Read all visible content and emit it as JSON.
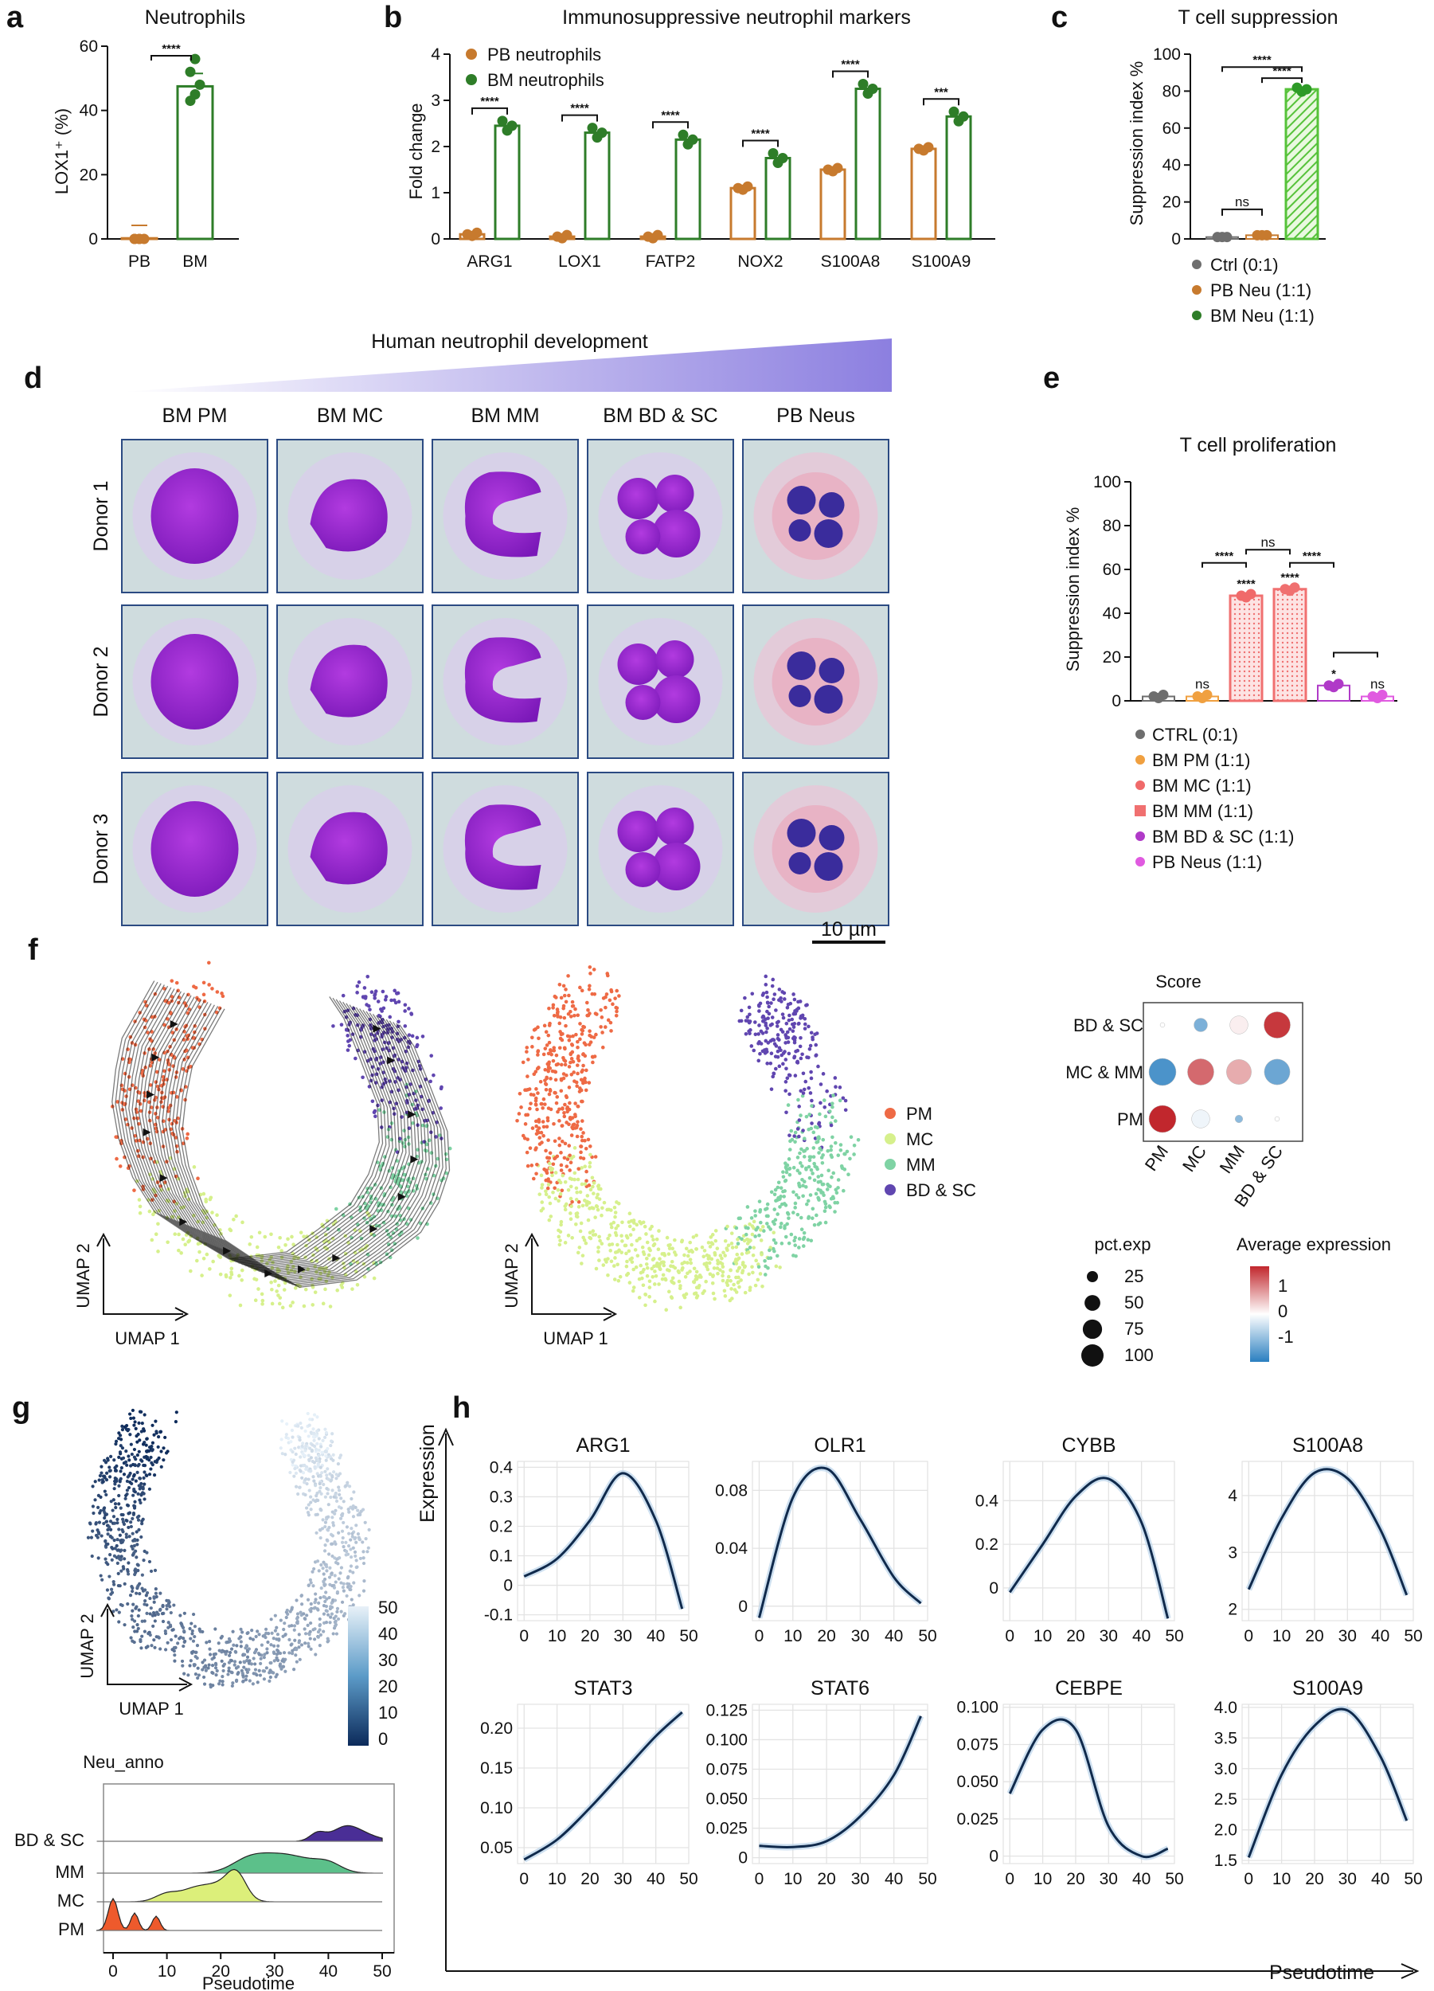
{
  "colors": {
    "pb": "#c77a2e",
    "bm": "#2e7d28",
    "bm_fill": "#56c23a",
    "ctrl": "#6e6e6e",
    "pm": "#f0a040",
    "mc": "#f06a6a",
    "mm": "#f07070",
    "bdsc": "#b03ac8",
    "pbneus": "#e05ae0",
    "umap_pm": "#ee6a45",
    "umap_mc": "#d6f08c",
    "umap_mm": "#7fd3a4",
    "umap_bdsc": "#6046b0",
    "curve": "#102a4c"
  },
  "panels": {
    "a": {
      "label": "a",
      "title": "Neutrophils",
      "ylabel": "LOX1⁺ (%)",
      "yticks": [
        "0",
        "20",
        "40",
        "60"
      ],
      "categories": [
        "PB",
        "BM"
      ],
      "sig": "****"
    },
    "b": {
      "label": "b",
      "title": "Immunosuppressive neutrophil markers",
      "ylabel": "Fold change",
      "yticks": [
        "0",
        "1",
        "2",
        "3",
        "4"
      ],
      "legend": [
        "PB neutrophils",
        "BM neutrophils"
      ],
      "categories": [
        "ARG1",
        "LOX1",
        "FATP2",
        "NOX2",
        "S100A8",
        "S100A9"
      ],
      "sigs": [
        "****",
        "****",
        "****",
        "****",
        "****",
        "***"
      ]
    },
    "c": {
      "label": "c",
      "title": "T cell suppression",
      "ylabel": "Suppression index %",
      "yticks": [
        "0",
        "20",
        "40",
        "60",
        "80",
        "100"
      ],
      "legend": [
        "Ctrl (0:1)",
        "PB Neu (1:1)",
        "BM Neu (1:1)"
      ],
      "sig_ns": "ns",
      "sig1": "****",
      "sig2": "****"
    },
    "d": {
      "label": "d",
      "title": "Human neutrophil development",
      "columns": [
        "BM PM",
        "BM MC",
        "BM MM",
        "BM BD & SC",
        "PB Neus"
      ],
      "rows": [
        "Donor 1",
        "Donor 2",
        "Donor 3"
      ],
      "scalebar": "10 µm"
    },
    "e": {
      "label": "e",
      "title": "T cell proliferation",
      "ylabel": "Suppression index %",
      "yticks": [
        "0",
        "20",
        "40",
        "60",
        "80",
        "100"
      ],
      "legend": [
        "CTRL (0:1)",
        "BM PM (1:1)",
        "BM MC (1:1)",
        "BM MM (1:1)",
        "BM BD & SC (1:1)",
        "PB Neus (1:1)"
      ],
      "bar_sigs": [
        "",
        "ns",
        "****",
        "****",
        "*",
        "ns"
      ],
      "bracket_sigs": [
        "****",
        "ns",
        "****"
      ]
    },
    "f": {
      "label": "f",
      "axis1": "UMAP 1",
      "axis2": "UMAP 2",
      "legend": [
        "PM",
        "MC",
        "MM",
        "BD & SC"
      ],
      "dot_title": "Score",
      "dot_rows": [
        "BD & SC",
        "MC & MM",
        "PM"
      ],
      "dot_cols": [
        "PM",
        "MC",
        "MM",
        "BD & SC"
      ],
      "pct_title": "pct.exp",
      "pct_values": [
        "25",
        "50",
        "75",
        "100"
      ],
      "avg_title": "Average expression",
      "avg_ticks": [
        "1",
        "0",
        "-1"
      ]
    },
    "g": {
      "label": "g",
      "axis1": "UMAP 1",
      "axis2": "UMAP 2",
      "colorbar_ticks": [
        "50",
        "40",
        "30",
        "20",
        "10",
        "0"
      ],
      "ridge_title": "Neu_anno",
      "ridge_rows": [
        "BD & SC",
        "MM",
        "MC",
        "PM"
      ],
      "xticks": [
        "0",
        "10",
        "20",
        "30",
        "40",
        "50"
      ],
      "xlabel": "Pseudotime"
    },
    "h": {
      "label": "h",
      "ylabel": "Expression",
      "xlabel": "Pseudotime",
      "xticks": [
        "0",
        "10",
        "20",
        "30",
        "40",
        "50"
      ]
    }
  },
  "chart_data": [
    {
      "type": "bar",
      "panel": "a",
      "title": "Neutrophils",
      "categories": [
        "PB",
        "BM"
      ],
      "values": [
        0.2,
        47.5
      ],
      "points": [
        [
          0,
          0,
          0,
          0,
          0
        ],
        [
          43,
          45,
          48,
          52,
          56
        ]
      ],
      "ylabel": "LOX1⁺ (%)",
      "ylim": [
        0,
        60
      ]
    },
    {
      "type": "bar",
      "panel": "b",
      "title": "Immunosuppressive neutrophil markers",
      "categories": [
        "ARG1",
        "LOX1",
        "FATP2",
        "NOX2",
        "S100A8",
        "S100A9"
      ],
      "series": [
        {
          "name": "PB neutrophils",
          "values": [
            0.1,
            0.05,
            0.05,
            1.1,
            1.5,
            1.95
          ]
        },
        {
          "name": "BM neutrophils",
          "values": [
            2.45,
            2.3,
            2.15,
            1.75,
            3.25,
            2.65
          ]
        }
      ],
      "ylabel": "Fold change",
      "ylim": [
        0,
        4
      ]
    },
    {
      "type": "bar",
      "panel": "c",
      "title": "T cell suppression",
      "categories": [
        "Ctrl (0:1)",
        "PB Neu (1:1)",
        "BM Neu (1:1)"
      ],
      "values": [
        1,
        2,
        81
      ],
      "ylabel": "Suppression index %",
      "ylim": [
        0,
        100
      ]
    },
    {
      "type": "bar",
      "panel": "e",
      "title": "T cell proliferation",
      "categories": [
        "CTRL (0:1)",
        "BM PM (1:1)",
        "BM MC (1:1)",
        "BM MM (1:1)",
        "BM BD & SC (1:1)",
        "PB Neus (1:1)"
      ],
      "values": [
        2,
        2,
        48,
        51,
        7,
        2
      ],
      "ylabel": "Suppression index %",
      "ylim": [
        0,
        100
      ]
    },
    {
      "type": "line",
      "panel": "h",
      "title": "ARG1",
      "x": [
        0,
        10,
        20,
        30,
        40,
        48
      ],
      "y": [
        0.03,
        0.09,
        0.22,
        0.38,
        0.22,
        -0.08
      ],
      "yticks": [
        "-0.1",
        "0",
        "0.1",
        "0.2",
        "0.3",
        "0.4"
      ],
      "ylim": [
        -0.12,
        0.42
      ]
    },
    {
      "type": "line",
      "panel": "h",
      "title": "OLR1",
      "x": [
        0,
        10,
        20,
        30,
        40,
        48
      ],
      "y": [
        -0.008,
        0.075,
        0.095,
        0.06,
        0.02,
        0.002
      ],
      "yticks": [
        "0",
        "0.04",
        "0.08"
      ],
      "ylim": [
        -0.01,
        0.1
      ]
    },
    {
      "type": "line",
      "panel": "h",
      "title": "CYBB",
      "x": [
        0,
        10,
        20,
        30,
        40,
        48
      ],
      "y": [
        -0.02,
        0.2,
        0.42,
        0.5,
        0.3,
        -0.14
      ],
      "yticks": [
        "0",
        "0.2",
        "0.4"
      ],
      "ylim": [
        -0.15,
        0.58
      ]
    },
    {
      "type": "line",
      "panel": "h",
      "title": "S100A8",
      "x": [
        0,
        10,
        20,
        30,
        40,
        48
      ],
      "y": [
        2.35,
        3.6,
        4.4,
        4.3,
        3.4,
        2.25
      ],
      "yticks": [
        "2",
        "3",
        "4"
      ],
      "ylim": [
        1.8,
        4.6
      ]
    },
    {
      "type": "line",
      "panel": "h",
      "title": "STAT3",
      "x": [
        0,
        10,
        20,
        30,
        40,
        48
      ],
      "y": [
        0.035,
        0.06,
        0.1,
        0.145,
        0.19,
        0.22
      ],
      "yticks": [
        "0.05",
        "0.10",
        "0.15",
        "0.20"
      ],
      "ylim": [
        0.03,
        0.23
      ]
    },
    {
      "type": "line",
      "panel": "h",
      "title": "STAT6",
      "x": [
        0,
        10,
        20,
        30,
        40,
        48
      ],
      "y": [
        0.01,
        0.009,
        0.014,
        0.035,
        0.07,
        0.12
      ],
      "yticks": [
        "0",
        "0.025",
        "0.050",
        "0.075",
        "0.100",
        "0.125"
      ],
      "ylim": [
        -0.005,
        0.13
      ]
    },
    {
      "type": "line",
      "panel": "h",
      "title": "CEBPE",
      "x": [
        0,
        10,
        20,
        30,
        40,
        48
      ],
      "y": [
        0.042,
        0.085,
        0.085,
        0.02,
        0,
        0.005
      ],
      "yticks": [
        "0",
        "0.025",
        "0.050",
        "0.075",
        "0.100"
      ],
      "ylim": [
        -0.005,
        0.102
      ]
    },
    {
      "type": "line",
      "panel": "h",
      "title": "S100A9",
      "x": [
        0,
        10,
        20,
        30,
        40,
        48
      ],
      "y": [
        1.55,
        2.9,
        3.7,
        3.95,
        3.2,
        2.15
      ],
      "yticks": [
        "1.5",
        "2.0",
        "2.5",
        "3.0",
        "3.5",
        "4.0"
      ],
      "ylim": [
        1.45,
        4.05
      ]
    },
    {
      "type": "heatmap",
      "panel": "f",
      "title": "Score",
      "rows": [
        "BD & SC",
        "MC & MM",
        "PM"
      ],
      "cols": [
        "PM",
        "MC",
        "MM",
        "BD & SC"
      ],
      "pct": [
        [
          3,
          25,
          45,
          95
        ],
        [
          100,
          95,
          85,
          90
        ],
        [
          100,
          45,
          8,
          3
        ]
      ],
      "avg": [
        [
          0,
          -0.8,
          0.1,
          1.2
        ],
        [
          -1.1,
          0.9,
          0.5,
          -0.9
        ],
        [
          1.3,
          -0.1,
          -0.7,
          0
        ]
      ]
    }
  ]
}
